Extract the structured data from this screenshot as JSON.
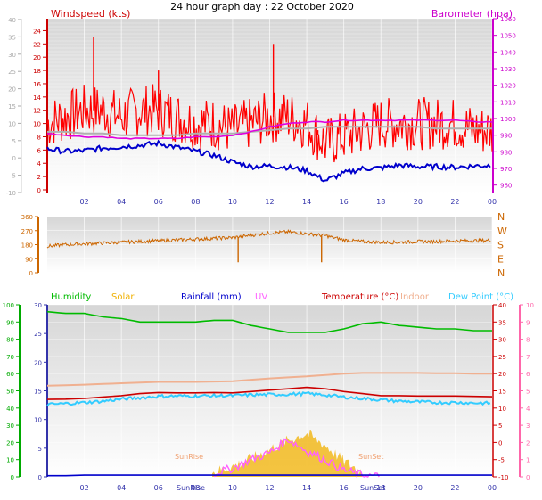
{
  "page_title": "24 hour graph day : 22 October 2020",
  "colors": {
    "windspeed": "#ff0000",
    "gust": "#ff0000",
    "avg_wind": "#0000cc",
    "barometer": "#e000e0",
    "baro_avg": "#b0b0b0",
    "wind_dir": "#cc6600",
    "humidity": "#00bb00",
    "solar": "#f0b000",
    "rainfall": "#0000cc",
    "uv": "#ff60ff",
    "temperature": "#cc0000",
    "indoor": "#f0b090",
    "dew_point": "#33ccff",
    "axis_blue": "#3333aa",
    "axis_green": "#00aa00",
    "axis_pink": "#ff66aa"
  },
  "chart_data": [
    {
      "type": "line",
      "name": "wind-barometer",
      "left_label": "Windspeed (kts)",
      "right_label": "Barometer (hpa)",
      "x_ticks": [
        "02",
        "04",
        "06",
        "08",
        "10",
        "12",
        "14",
        "16",
        "18",
        "20",
        "22",
        "00"
      ],
      "left_ticks": [
        "-10",
        "-5",
        "0",
        "5",
        "10",
        "15",
        "20",
        "25",
        "30",
        "35",
        "40"
      ],
      "inner_left_ticks": [
        "0",
        "2",
        "4",
        "6",
        "8",
        "10",
        "12",
        "14",
        "16",
        "18",
        "20",
        "22",
        "24"
      ],
      "right_ticks": [
        "960",
        "970",
        "980",
        "990",
        "1000",
        "1010",
        "1020",
        "1030",
        "1040",
        "1050",
        "1060"
      ],
      "ylim_kts": [
        0,
        25
      ],
      "ylim_hpa": [
        955,
        1060
      ],
      "x_hours": [
        0,
        1,
        2,
        3,
        4,
        5,
        6,
        7,
        8,
        9,
        10,
        11,
        12,
        13,
        14,
        15,
        16,
        17,
        18,
        19,
        20,
        21,
        22,
        23,
        24
      ],
      "avg_wind_kts": [
        6.2,
        5.8,
        5.9,
        6.3,
        6.5,
        6.7,
        7.0,
        6.4,
        5.8,
        5.2,
        4.2,
        3.5,
        3.6,
        3.4,
        2.9,
        1.4,
        2.5,
        3.2,
        3.3,
        3.7,
        3.5,
        3.5,
        3.4,
        3.6,
        3.7
      ],
      "windspeed_kts": [
        10,
        11,
        12,
        12,
        11,
        12,
        12,
        11,
        10,
        10,
        9,
        10,
        11,
        11,
        10,
        7,
        8,
        9,
        10,
        10,
        10,
        10,
        10,
        9,
        9
      ],
      "gust_peaks_kts": [
        {
          "x": 2.5,
          "y": 23
        },
        {
          "x": 6.0,
          "y": 18
        },
        {
          "x": 12.2,
          "y": 22
        },
        {
          "x": 14.6,
          "y": 9.0
        }
      ],
      "barometer_hpa": [
        991,
        990,
        989,
        989,
        988,
        988,
        988,
        988,
        989,
        989,
        990,
        992,
        995,
        997,
        998,
        998,
        999,
        999,
        999,
        999,
        999,
        999,
        999,
        998,
        998
      ],
      "baro_avg_hpa": [
        992,
        992,
        991,
        991,
        990,
        990,
        990,
        990,
        991,
        991,
        991,
        992,
        993,
        994,
        994,
        995,
        995,
        995,
        995,
        995,
        995,
        994,
        994,
        994,
        994
      ]
    },
    {
      "type": "line",
      "name": "wind-direction",
      "left_ticks": [
        "0",
        "90",
        "180",
        "270",
        "360"
      ],
      "right_ticks": [
        "N",
        "E",
        "S",
        "W",
        "N"
      ],
      "ylim": [
        0,
        360
      ],
      "x_hours": [
        0,
        1,
        2,
        3,
        4,
        5,
        6,
        7,
        8,
        9,
        10,
        11,
        12,
        13,
        14,
        15,
        16,
        17,
        18,
        19,
        20,
        21,
        22,
        23,
        24
      ],
      "direction_deg": [
        170,
        180,
        185,
        190,
        195,
        200,
        205,
        210,
        215,
        220,
        225,
        240,
        255,
        262,
        250,
        238,
        210,
        200,
        195,
        195,
        200,
        200,
        205,
        205,
        208
      ],
      "dips": [
        {
          "x": 10.3,
          "y": 90
        },
        {
          "x": 14.8,
          "y": 90
        }
      ]
    },
    {
      "type": "line",
      "name": "temp-humidity-solar",
      "legend": [
        "Humidity",
        "Solar",
        "Rainfall (mm)",
        "UV",
        "Temperature (°C)",
        "Indoor",
        "Dew Point (°C)"
      ],
      "x_ticks": [
        "02",
        "04",
        "06",
        "08",
        "10",
        "12",
        "14",
        "16",
        "18",
        "20",
        "22",
        "00"
      ],
      "sunrise_label": "SunRise",
      "sunset_label": "SunSet",
      "sunrise_hour": 7.4,
      "sunset_hour": 17.8,
      "humidity_ticks": [
        "0",
        "10",
        "20",
        "30",
        "40",
        "50",
        "60",
        "70",
        "80",
        "90",
        "100"
      ],
      "left_ticks": [
        "0",
        "5",
        "10",
        "15",
        "20",
        "25",
        "30"
      ],
      "right_ticks": [
        "-10",
        "-5",
        "0",
        "5",
        "10",
        "15",
        "20",
        "25",
        "30",
        "35",
        "40"
      ],
      "uv_ticks": [
        "0",
        "1",
        "2",
        "3",
        "4",
        "5",
        "6",
        "7",
        "8",
        "9",
        "10"
      ],
      "ylim_temp": [
        -10,
        40
      ],
      "ylim_humidity": [
        0,
        100
      ],
      "x_hours": [
        0,
        1,
        2,
        3,
        4,
        5,
        6,
        7,
        8,
        9,
        10,
        11,
        12,
        13,
        14,
        15,
        16,
        17,
        18,
        19,
        20,
        21,
        22,
        23,
        24
      ],
      "humidity_pct": [
        96,
        95,
        95,
        93,
        92,
        90,
        90,
        90,
        90,
        91,
        91,
        88,
        86,
        84,
        84,
        84,
        86,
        89,
        90,
        88,
        87,
        86,
        86,
        85,
        85
      ],
      "temperature_c": [
        12.5,
        12.6,
        12.8,
        13.2,
        13.6,
        14.2,
        14.5,
        14.4,
        14.4,
        14.5,
        14.4,
        14.8,
        15.2,
        15.6,
        16.0,
        15.6,
        14.8,
        14.2,
        13.6,
        13.6,
        13.5,
        13.5,
        13.5,
        13.4,
        13.3
      ],
      "indoor_c": [
        16.5,
        16.6,
        16.8,
        17.0,
        17.2,
        17.4,
        17.6,
        17.6,
        17.6,
        17.7,
        17.8,
        18.2,
        18.6,
        18.9,
        19.2,
        19.6,
        20.0,
        20.2,
        20.2,
        20.2,
        20.2,
        20.1,
        20.1,
        20.0,
        20.0
      ],
      "dew_point_c": [
        11.0,
        11.3,
        11.6,
        12.0,
        12.6,
        13.0,
        13.4,
        13.5,
        13.5,
        13.6,
        13.6,
        13.8,
        13.9,
        14.0,
        14.2,
        13.8,
        13.2,
        12.8,
        12.4,
        12.0,
        11.8,
        11.6,
        11.6,
        11.5,
        11.4
      ],
      "solar_kts_scale": [
        0,
        0,
        0,
        0,
        0,
        0,
        0,
        0,
        0,
        0.4,
        1.2,
        2.4,
        3.8,
        5.2,
        6.2,
        4.4,
        2.0,
        0.4,
        0,
        0,
        0,
        0,
        0,
        0,
        0
      ],
      "rainfall_mm": [
        0.2,
        0.2,
        0.3,
        0.3,
        0.3,
        0.3,
        0.3,
        0.3,
        0.3,
        0.3,
        0.3,
        0.3,
        0.3,
        0.3,
        0.3,
        0.3,
        0.3,
        0.3,
        0.3,
        0.3,
        0.3,
        0.3,
        0.3,
        0.3,
        0.3
      ],
      "uv_index": [
        0,
        0,
        0,
        0,
        0,
        0,
        0,
        0,
        0,
        0.2,
        0.5,
        1.0,
        1.4,
        2.2,
        1.5,
        1.0,
        0.4,
        0.1,
        0,
        0,
        0,
        0,
        0,
        0,
        0
      ]
    }
  ]
}
